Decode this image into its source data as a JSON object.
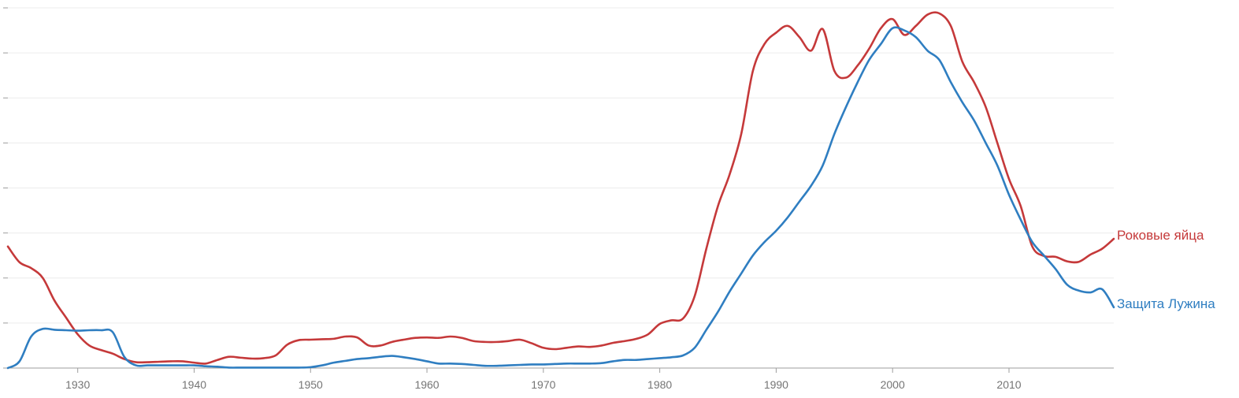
{
  "chart_data": {
    "type": "line",
    "xlim": [
      1924,
      2019
    ],
    "ylim": [
      0,
      8
    ],
    "grid": true,
    "x_ticks": [
      1930,
      1940,
      1950,
      1960,
      1970,
      1980,
      1990,
      2000,
      2010
    ],
    "x_tick_labels": [
      "1930",
      "1940",
      "1950",
      "1960",
      "1970",
      "1980",
      "1990",
      "2000",
      "2010"
    ],
    "y_ticks": [
      0,
      1,
      2,
      3,
      4,
      5,
      6,
      7,
      8
    ],
    "series": [
      {
        "name": "Роковые яйца",
        "color": "#c5393a",
        "x": [
          1924,
          1925,
          1926,
          1927,
          1928,
          1929,
          1930,
          1931,
          1932,
          1933,
          1934,
          1935,
          1936,
          1937,
          1938,
          1939,
          1940,
          1941,
          1942,
          1943,
          1944,
          1945,
          1946,
          1947,
          1948,
          1949,
          1950,
          1951,
          1952,
          1953,
          1954,
          1955,
          1956,
          1957,
          1958,
          1959,
          1960,
          1961,
          1962,
          1963,
          1964,
          1965,
          1966,
          1967,
          1968,
          1969,
          1970,
          1971,
          1972,
          1973,
          1974,
          1975,
          1976,
          1977,
          1978,
          1979,
          1980,
          1981,
          1982,
          1983,
          1984,
          1985,
          1986,
          1987,
          1988,
          1989,
          1990,
          1991,
          1992,
          1993,
          1994,
          1995,
          1996,
          1997,
          1998,
          1999,
          2000,
          2001,
          2002,
          2003,
          2004,
          2005,
          2006,
          2007,
          2008,
          2009,
          2010,
          2011,
          2012,
          2013,
          2014,
          2015,
          2016,
          2017,
          2018,
          2019
        ],
        "y": [
          2.7,
          2.35,
          2.22,
          2.0,
          1.5,
          1.12,
          0.75,
          0.5,
          0.4,
          0.32,
          0.2,
          0.13,
          0.13,
          0.14,
          0.15,
          0.15,
          0.12,
          0.1,
          0.18,
          0.25,
          0.23,
          0.21,
          0.22,
          0.28,
          0.52,
          0.62,
          0.63,
          0.64,
          0.65,
          0.7,
          0.68,
          0.5,
          0.5,
          0.58,
          0.63,
          0.67,
          0.68,
          0.67,
          0.7,
          0.67,
          0.6,
          0.58,
          0.58,
          0.6,
          0.63,
          0.55,
          0.45,
          0.42,
          0.45,
          0.48,
          0.47,
          0.5,
          0.56,
          0.6,
          0.65,
          0.75,
          0.98,
          1.06,
          1.1,
          1.6,
          2.65,
          3.6,
          4.3,
          5.2,
          6.6,
          7.2,
          7.45,
          7.6,
          7.35,
          7.05,
          7.53,
          6.6,
          6.45,
          6.72,
          7.1,
          7.55,
          7.75,
          7.4,
          7.6,
          7.85,
          7.88,
          7.6,
          6.8,
          6.35,
          5.8,
          5.0,
          4.2,
          3.6,
          2.7,
          2.49,
          2.47,
          2.37,
          2.36,
          2.52,
          2.65,
          2.87
        ]
      },
      {
        "name": "Защита Лужина",
        "color": "#2f7ec1",
        "x": [
          1924,
          1925,
          1926,
          1927,
          1928,
          1929,
          1930,
          1931,
          1932,
          1933,
          1934,
          1935,
          1936,
          1937,
          1938,
          1939,
          1940,
          1941,
          1942,
          1943,
          1944,
          1945,
          1946,
          1947,
          1948,
          1949,
          1950,
          1951,
          1952,
          1953,
          1954,
          1955,
          1956,
          1957,
          1958,
          1959,
          1960,
          1961,
          1962,
          1963,
          1964,
          1965,
          1966,
          1967,
          1968,
          1969,
          1970,
          1971,
          1972,
          1973,
          1974,
          1975,
          1976,
          1977,
          1978,
          1979,
          1980,
          1981,
          1982,
          1983,
          1984,
          1985,
          1986,
          1987,
          1988,
          1989,
          1990,
          1991,
          1992,
          1993,
          1994,
          1995,
          1996,
          1997,
          1998,
          1999,
          2000,
          2001,
          2002,
          2003,
          2004,
          2005,
          2006,
          2007,
          2008,
          2009,
          2010,
          2011,
          2012,
          2013,
          2014,
          2015,
          2016,
          2017,
          2018,
          2019
        ],
        "y": [
          0.0,
          0.15,
          0.7,
          0.87,
          0.85,
          0.84,
          0.83,
          0.84,
          0.84,
          0.8,
          0.25,
          0.06,
          0.06,
          0.06,
          0.06,
          0.06,
          0.06,
          0.04,
          0.03,
          0.01,
          0.01,
          0.01,
          0.01,
          0.01,
          0.01,
          0.01,
          0.02,
          0.06,
          0.12,
          0.16,
          0.2,
          0.22,
          0.25,
          0.27,
          0.24,
          0.2,
          0.15,
          0.1,
          0.1,
          0.09,
          0.07,
          0.05,
          0.05,
          0.06,
          0.07,
          0.08,
          0.08,
          0.09,
          0.1,
          0.1,
          0.1,
          0.11,
          0.15,
          0.18,
          0.18,
          0.2,
          0.22,
          0.24,
          0.28,
          0.45,
          0.85,
          1.25,
          1.7,
          2.1,
          2.5,
          2.8,
          3.05,
          3.35,
          3.7,
          4.05,
          4.5,
          5.2,
          5.8,
          6.35,
          6.85,
          7.2,
          7.55,
          7.5,
          7.35,
          7.05,
          6.85,
          6.35,
          5.9,
          5.5,
          5.0,
          4.5,
          3.85,
          3.3,
          2.8,
          2.5,
          2.2,
          1.85,
          1.72,
          1.68,
          1.75,
          1.35
        ]
      }
    ]
  }
}
